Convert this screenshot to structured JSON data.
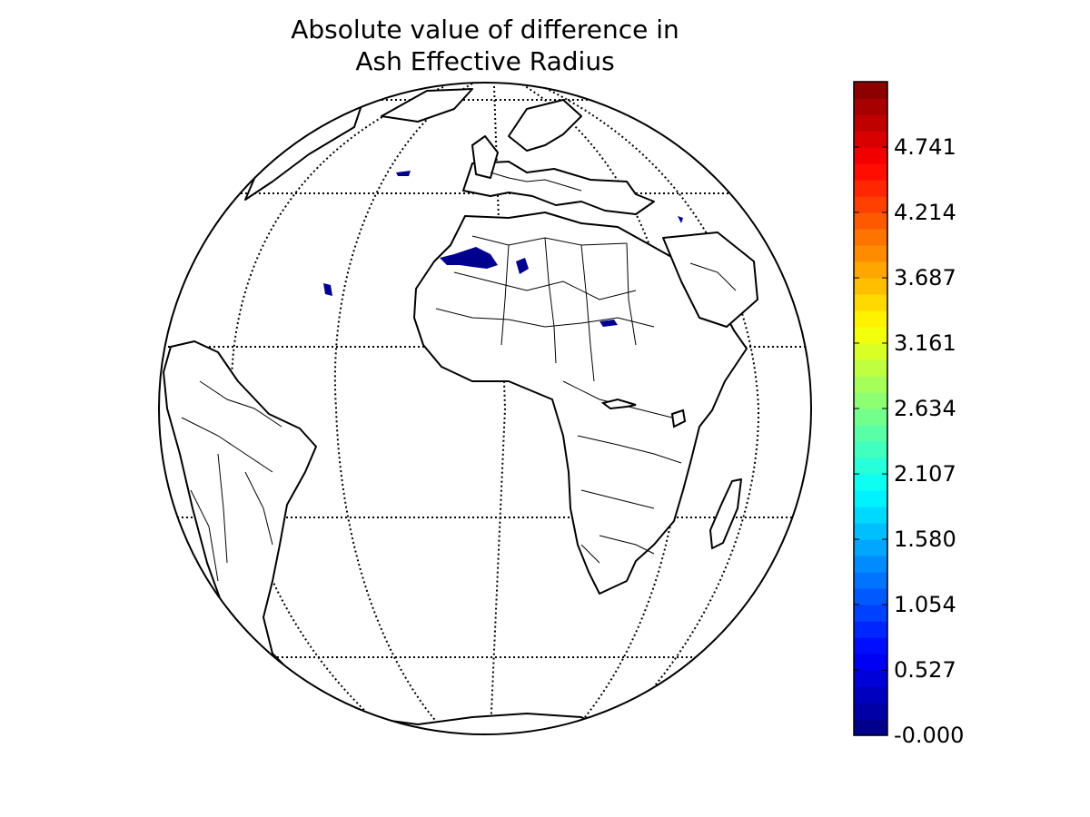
{
  "map": {
    "title_line1": "Absolute value of difference in",
    "title_line2": "Ash Effective Radius",
    "projection": "orthographic",
    "center_lon": 10,
    "center_lat": 0,
    "graticule": {
      "parallels": [
        -60,
        -30,
        0,
        30,
        60
      ],
      "meridians": [
        -60,
        -30,
        0,
        30,
        60
      ]
    },
    "colormap": "jet",
    "features": [
      "coastlines",
      "country-borders",
      "graticule",
      "data-pixels"
    ]
  },
  "colorbar": {
    "min": 0.0,
    "max": 5.268,
    "ticks": [
      "-0.000",
      "0.527",
      "1.054",
      "1.580",
      "2.107",
      "2.634",
      "3.161",
      "3.687",
      "4.214",
      "4.741"
    ],
    "tick_values": [
      0.0,
      0.527,
      1.054,
      1.58,
      2.107,
      2.634,
      3.161,
      3.687,
      4.214,
      4.741
    ],
    "levels": 40
  },
  "colors": {
    "coast": "#000000",
    "borders": "#000000",
    "data_low": "#00008f",
    "data_mid": "#0020c8"
  }
}
